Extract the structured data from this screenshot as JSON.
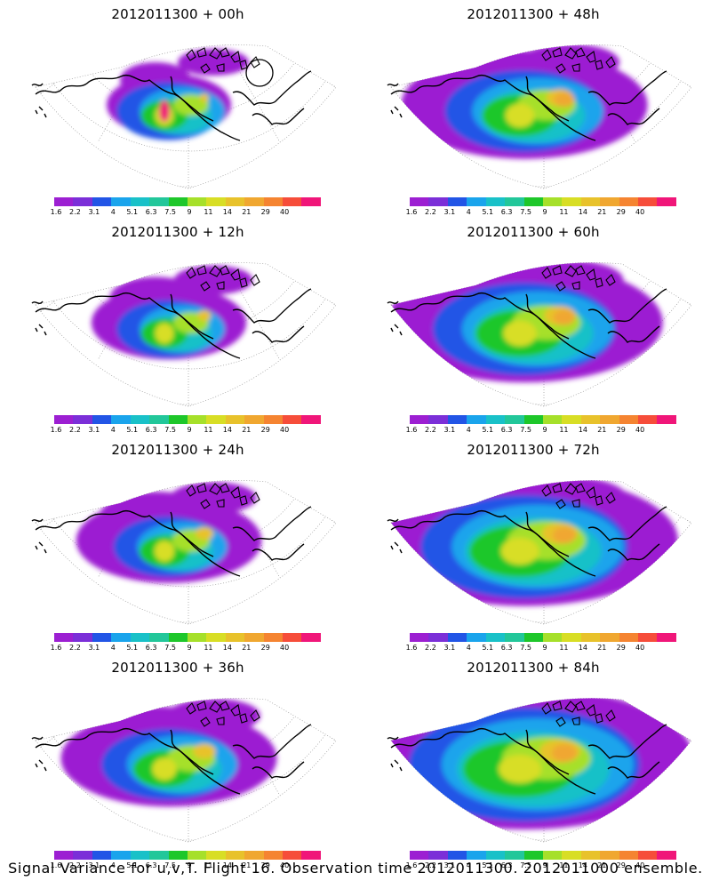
{
  "colorbar": {
    "colors": [
      "#9c1fd2",
      "#7b2fd8",
      "#2255e6",
      "#1aa4ec",
      "#19c1c8",
      "#22c79a",
      "#1ec72a",
      "#a6e02a",
      "#d8de25",
      "#e8c22b",
      "#f0a730",
      "#f58431",
      "#f64d3a",
      "#f01679"
    ],
    "ticks": [
      "1.6",
      "2.2",
      "3.1",
      "4",
      "5.1",
      "6.3",
      "7.5",
      "9",
      "11",
      "14",
      "21",
      "29",
      "40"
    ]
  },
  "panels": [
    {
      "title": "2012011300 + 00h",
      "lead_hours": 0
    },
    {
      "title": "2012011300 + 48h",
      "lead_hours": 48
    },
    {
      "title": "2012011300 + 12h",
      "lead_hours": 12
    },
    {
      "title": "2012011300 + 60h",
      "lead_hours": 60
    },
    {
      "title": "2012011300 + 24h",
      "lead_hours": 24
    },
    {
      "title": "2012011300 + 72h",
      "lead_hours": 72
    },
    {
      "title": "2012011300 + 36h",
      "lead_hours": 36
    },
    {
      "title": "2012011300 + 84h",
      "lead_hours": 84
    }
  ],
  "caption": "Signal Variance for u,v,T. Flight 16. Observation time 2012011300. 2012011000 ensemble."
}
